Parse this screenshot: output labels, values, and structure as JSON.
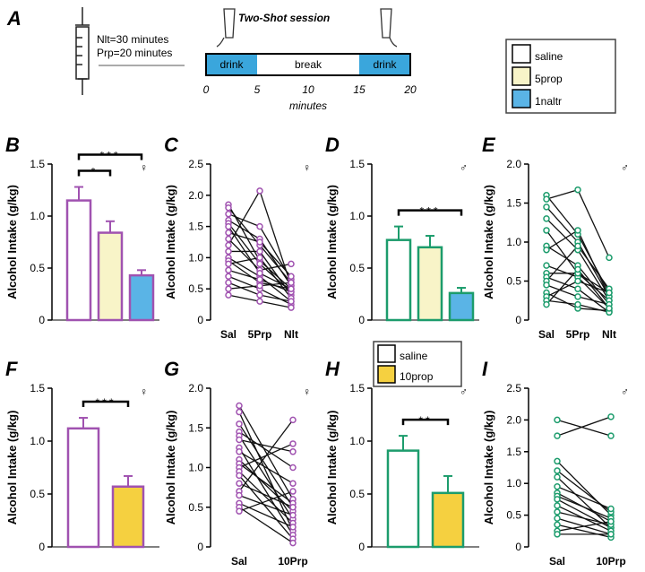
{
  "schematic": {
    "label": "A",
    "title": "Two-Shot session",
    "notes": [
      "Nlt=30 minutes",
      "Prp=20 minutes"
    ],
    "segments": [
      {
        "label": "drink",
        "start": 0,
        "end": 5,
        "color": "#3aa6dc"
      },
      {
        "label": "break",
        "start": 5,
        "end": 15,
        "color": "#ffffff"
      },
      {
        "label": "drink",
        "start": 15,
        "end": 20,
        "color": "#3aa6dc"
      }
    ],
    "xlim": [
      0,
      20
    ],
    "xticks": [
      0,
      5,
      10,
      15,
      20
    ],
    "xlabel": "minutes"
  },
  "legend": [
    {
      "name": "saline",
      "color": "#ffffff"
    },
    {
      "name": "5prop",
      "color": "#f8f4c8"
    },
    {
      "name": "1naltr",
      "color": "#5ab4e6"
    }
  ],
  "chart_data": [
    {
      "type": "bar",
      "label": "B",
      "symbol": "♀",
      "color": "#a052b0",
      "ylabel": "Alcohol Intake (g/kg)",
      "categories": [
        null,
        null,
        null
      ],
      "values": [
        1.15,
        0.84,
        0.43
      ],
      "errors": [
        0.13,
        0.11,
        0.05
      ],
      "colors": [
        "#ffffff",
        "#f8f4c8",
        "#5ab4e6"
      ],
      "ylim": [
        0,
        1.5
      ],
      "yticks": [
        0,
        0.5,
        {
          "value": 1,
          "label": "1.0"
        },
        1.5
      ],
      "annotations": [
        {
          "text": "*",
          "from": 0,
          "to": 1
        },
        {
          "text": "***",
          "from": 0,
          "to": 2
        }
      ]
    },
    {
      "type": "paired",
      "label": "C",
      "symbol": "♀",
      "color": "#a052b0",
      "ylabel": "Alcohol Intake (g/kg)",
      "categories": [
        "Sal",
        "5Prp",
        "Nlt"
      ],
      "ylim": [
        0,
        2.5
      ],
      "yticks": [
        0,
        0.5,
        {
          "value": 1,
          "label": "1.0"
        },
        1.5,
        {
          "value": 2,
          "label": "2.0"
        },
        2.5
      ],
      "series": [
        {
          "values": [
            1.85,
            0.95,
            0.5
          ]
        },
        {
          "values": [
            1.8,
            1.2,
            0.6
          ]
        },
        {
          "values": [
            1.7,
            1.5,
            0.65
          ]
        },
        {
          "values": [
            1.6,
            1.3,
            0.55
          ]
        },
        {
          "values": [
            1.55,
            0.9,
            0.45
          ]
        },
        {
          "values": [
            1.4,
            1.25,
            0.7
          ]
        },
        {
          "values": [
            1.3,
            0.8,
            0.9
          ]
        },
        {
          "values": [
            1.2,
            2.07,
            0.55
          ]
        },
        {
          "values": [
            1.1,
            1.1,
            0.4
          ]
        },
        {
          "values": [
            1.0,
            0.7,
            0.3
          ]
        },
        {
          "values": [
            0.95,
            0.6,
            0.5
          ]
        },
        {
          "values": [
            0.9,
            1.0,
            0.35
          ]
        },
        {
          "values": [
            0.8,
            0.65,
            0.45
          ]
        },
        {
          "values": [
            0.7,
            0.5,
            0.25
          ]
        },
        {
          "values": [
            0.6,
            0.4,
            0.3
          ]
        },
        {
          "values": [
            0.5,
            0.55,
            0.6
          ]
        },
        {
          "values": [
            0.4,
            0.3,
            0.2
          ]
        },
        {
          "values": [
            1.5,
            0.75,
            0.5
          ]
        }
      ]
    },
    {
      "type": "bar",
      "label": "D",
      "symbol": "♂",
      "color": "#1c9c6c",
      "ylabel": "Alcohol Intake (g/kg)",
      "categories": [
        null,
        null,
        null
      ],
      "values": [
        0.77,
        0.7,
        0.26
      ],
      "errors": [
        0.13,
        0.11,
        0.05
      ],
      "colors": [
        "#ffffff",
        "#f8f4c8",
        "#5ab4e6"
      ],
      "ylim": [
        0,
        1.5
      ],
      "yticks": [
        0,
        0.5,
        {
          "value": 1,
          "label": "1.0"
        },
        1.5
      ],
      "annotations": [
        {
          "text": "***",
          "from": 0,
          "to": 2
        }
      ]
    },
    {
      "type": "paired",
      "label": "E",
      "symbol": "♂",
      "color": "#1c9c6c",
      "ylabel": "Alcohol Intake (g/kg)",
      "categories": [
        "Sal",
        "5Prp",
        "Nlt"
      ],
      "ylim": [
        0,
        2
      ],
      "yticks": [
        0,
        0.5,
        {
          "value": 1,
          "label": "1.0"
        },
        1.5,
        {
          "value": 2,
          "label": "2.0"
        }
      ],
      "series": [
        {
          "values": [
            1.6,
            1.1,
            0.35
          ]
        },
        {
          "values": [
            1.55,
            1.67,
            0.8
          ]
        },
        {
          "values": [
            1.45,
            1.0,
            0.3
          ]
        },
        {
          "values": [
            1.3,
            0.9,
            0.25
          ]
        },
        {
          "values": [
            1.15,
            0.6,
            0.35
          ]
        },
        {
          "values": [
            0.95,
            0.7,
            0.2
          ]
        },
        {
          "values": [
            0.9,
            1.15,
            0.3
          ]
        },
        {
          "values": [
            0.7,
            0.55,
            0.15
          ]
        },
        {
          "values": [
            0.6,
            0.6,
            0.25
          ]
        },
        {
          "values": [
            0.55,
            0.4,
            0.1
          ]
        },
        {
          "values": [
            0.5,
            0.95,
            0.4
          ]
        },
        {
          "values": [
            0.45,
            0.3,
            0.2
          ]
        },
        {
          "values": [
            0.35,
            0.15,
            0.12
          ]
        },
        {
          "values": [
            0.3,
            0.5,
            0.35
          ]
        },
        {
          "values": [
            0.25,
            0.2,
            0.1
          ]
        },
        {
          "values": [
            0.2,
            0.65,
            0.15
          ]
        }
      ]
    },
    {
      "type": "bar",
      "label": "F",
      "symbol": "♀",
      "color": "#a052b0",
      "ylabel": "Alcohol Intake (g/kg)",
      "categories": [
        null,
        null
      ],
      "values": [
        1.12,
        0.57
      ],
      "errors": [
        0.1,
        0.1
      ],
      "colors": [
        "#ffffff",
        "#f5d040"
      ],
      "ylim": [
        0,
        1.5
      ],
      "yticks": [
        0,
        0.5,
        {
          "value": 1,
          "label": "1.0"
        },
        1.5
      ],
      "annotations": [
        {
          "text": "***",
          "from": 0,
          "to": 1
        }
      ]
    },
    {
      "type": "paired",
      "label": "G",
      "symbol": "♀",
      "color": "#a052b0",
      "ylabel": "Alcohol Intake (g/kg)",
      "categories": [
        "Sal",
        "10Prp"
      ],
      "ylim": [
        0,
        2
      ],
      "yticks": [
        0,
        0.5,
        {
          "value": 1,
          "label": "1.0"
        },
        1.5,
        {
          "value": 2,
          "label": "2.0"
        }
      ],
      "series": [
        {
          "values": [
            1.78,
            0.6
          ]
        },
        {
          "values": [
            1.7,
            0.2
          ]
        },
        {
          "values": [
            1.55,
            0.5
          ]
        },
        {
          "values": [
            1.45,
            1.0
          ]
        },
        {
          "values": [
            1.4,
            0.35
          ]
        },
        {
          "values": [
            1.35,
            1.2
          ]
        },
        {
          "values": [
            1.25,
            0.15
          ]
        },
        {
          "values": [
            1.2,
            0.8
          ]
        },
        {
          "values": [
            1.1,
            0.45
          ]
        },
        {
          "values": [
            1.05,
            0.55
          ]
        },
        {
          "values": [
            1.0,
            1.3
          ]
        },
        {
          "values": [
            0.95,
            0.3
          ]
        },
        {
          "values": [
            0.9,
            0.1
          ]
        },
        {
          "values": [
            0.8,
            0.5
          ]
        },
        {
          "values": [
            0.7,
            1.6
          ]
        },
        {
          "values": [
            0.65,
            0.4
          ]
        },
        {
          "values": [
            0.55,
            0.25
          ]
        },
        {
          "values": [
            0.5,
            0.05
          ]
        },
        {
          "values": [
            0.45,
            0.7
          ]
        }
      ]
    },
    {
      "type": "bar",
      "label": "H",
      "symbol": "♂",
      "color": "#1c9c6c",
      "ylabel": "Alcohol Intake (g/kg)",
      "categories": [
        null,
        null
      ],
      "values": [
        0.91,
        0.51
      ],
      "errors": [
        0.14,
        0.16
      ],
      "colors": [
        "#ffffff",
        "#f5d040"
      ],
      "ylim": [
        0,
        1.5
      ],
      "yticks": [
        0,
        0.5,
        {
          "value": 1,
          "label": "1.0"
        },
        1.5
      ],
      "annotations": [
        {
          "text": "**",
          "from": 0,
          "to": 1
        }
      ],
      "legend": [
        {
          "name": "saline",
          "color": "#ffffff"
        },
        {
          "name": "10prop",
          "color": "#f5d040"
        }
      ]
    },
    {
      "type": "paired",
      "label": "I",
      "symbol": "♂",
      "color": "#1c9c6c",
      "ylabel": "Alcohol Intake (g/kg)",
      "categories": [
        "Sal",
        "10Prp"
      ],
      "ylim": [
        0,
        2.5
      ],
      "yticks": [
        0,
        0.5,
        {
          "value": 1,
          "label": "1.0"
        },
        1.5,
        {
          "value": 2,
          "label": "2.0"
        },
        2.5
      ],
      "series": [
        {
          "values": [
            2.0,
            1.75
          ]
        },
        {
          "values": [
            1.75,
            2.05
          ]
        },
        {
          "values": [
            1.35,
            0.5
          ]
        },
        {
          "values": [
            1.2,
            0.55
          ]
        },
        {
          "values": [
            1.1,
            0.3
          ]
        },
        {
          "values": [
            0.95,
            0.6
          ]
        },
        {
          "values": [
            0.85,
            0.4
          ]
        },
        {
          "values": [
            0.8,
            0.45
          ]
        },
        {
          "values": [
            0.75,
            0.3
          ]
        },
        {
          "values": [
            0.65,
            0.25
          ]
        },
        {
          "values": [
            0.55,
            0.35
          ]
        },
        {
          "values": [
            0.45,
            0.2
          ]
        },
        {
          "values": [
            0.35,
            0.15
          ]
        },
        {
          "values": [
            0.25,
            0.4
          ]
        },
        {
          "values": [
            0.2,
            0.2
          ]
        }
      ]
    }
  ]
}
